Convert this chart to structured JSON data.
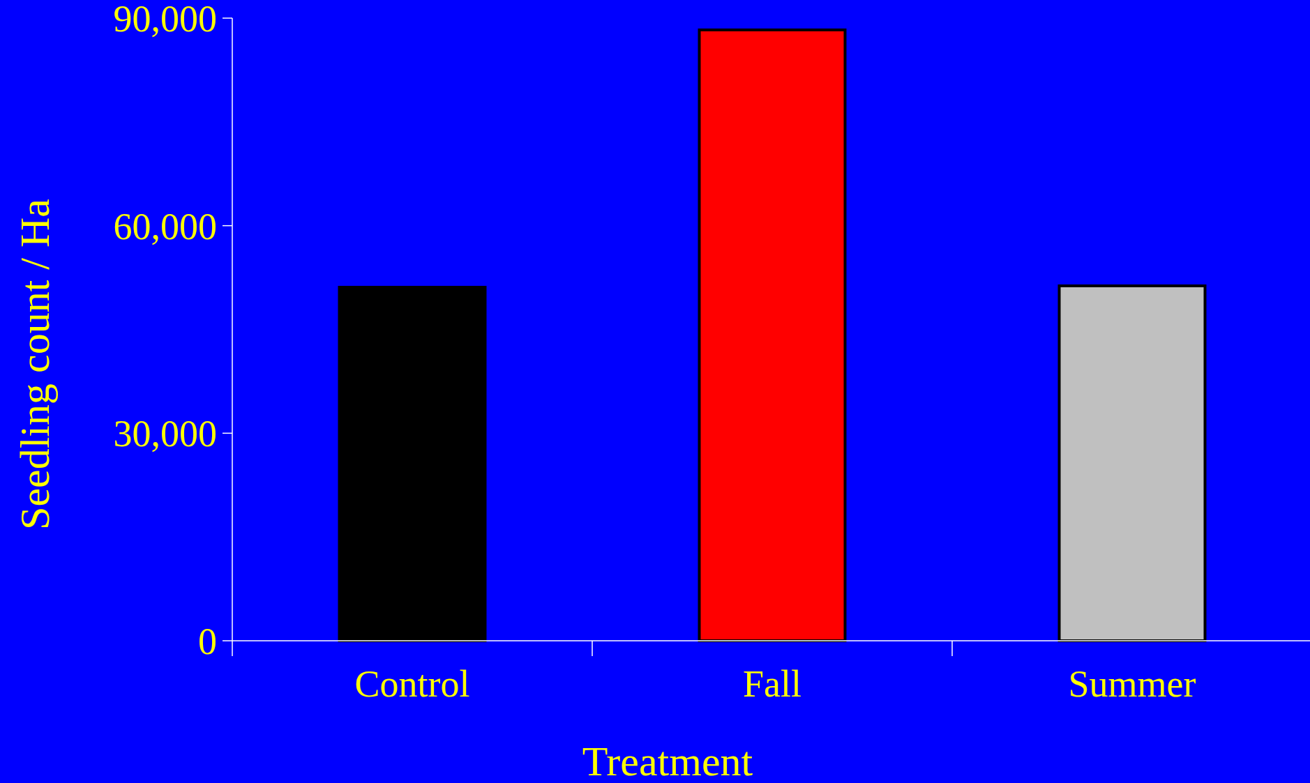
{
  "chart_data": {
    "type": "bar",
    "xlabel": "Treatment",
    "ylabel": "Seedling count / Ha",
    "categories": [
      "Control",
      "Fall",
      "Summer"
    ],
    "values": [
      51100,
      88300,
      51300
    ],
    "colors": [
      "#000000",
      "#ff0000",
      "#c0c0c0"
    ],
    "ylim": [
      0,
      90000
    ],
    "yticks": [
      {
        "value": 0,
        "label": "0"
      },
      {
        "value": 30000,
        "label": "30,000"
      },
      {
        "value": 60000,
        "label": "60,000"
      },
      {
        "value": 90000,
        "label": "90,000"
      }
    ],
    "grid": false
  }
}
